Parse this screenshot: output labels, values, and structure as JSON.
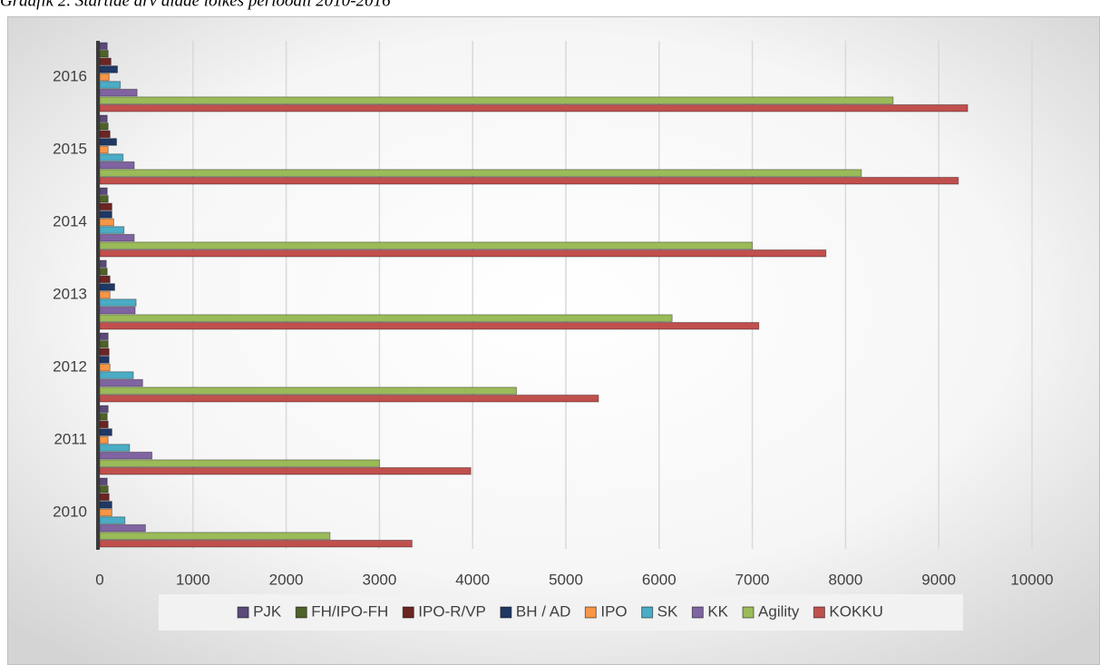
{
  "chart_data": {
    "type": "hbar",
    "title": "Graafik 2. Startide arv alade lõikes perioodil 2010-2016",
    "categories": [
      "2010",
      "2011",
      "2012",
      "2013",
      "2014",
      "2015",
      "2016"
    ],
    "series": [
      {
        "name": "PJK",
        "color": "#5b4a7a",
        "values": [
          80,
          90,
          90,
          70,
          80,
          80,
          80
        ]
      },
      {
        "name": "FH/IPO-FH",
        "color": "#4f6228",
        "values": [
          90,
          80,
          90,
          80,
          90,
          90,
          90
        ]
      },
      {
        "name": "IPO-R/VP",
        "color": "#6b2523",
        "values": [
          100,
          90,
          100,
          110,
          130,
          110,
          120
        ]
      },
      {
        "name": "BH / AD",
        "color": "#1f3864",
        "values": [
          130,
          130,
          100,
          160,
          130,
          180,
          190
        ]
      },
      {
        "name": "IPO",
        "color": "#f79646",
        "values": [
          130,
          90,
          110,
          110,
          150,
          90,
          100
        ]
      },
      {
        "name": "SK",
        "color": "#4bacc6",
        "values": [
          270,
          320,
          360,
          390,
          260,
          250,
          220
        ]
      },
      {
        "name": "KK",
        "color": "#8064a2",
        "values": [
          490,
          560,
          460,
          380,
          370,
          370,
          400
        ]
      },
      {
        "name": "Agility",
        "color": "#9bbb59",
        "values": [
          2470,
          3000,
          4470,
          6140,
          7000,
          8170,
          8510
        ]
      },
      {
        "name": "KOKKU",
        "color": "#c0504d",
        "values": [
          3350,
          3980,
          5350,
          7070,
          7790,
          9210,
          9310
        ]
      }
    ],
    "xlim": [
      0,
      10000
    ],
    "xticks": [
      0,
      1000,
      2000,
      3000,
      4000,
      5000,
      6000,
      7000,
      8000,
      9000,
      10000
    ],
    "grid": true,
    "legend": "bottom"
  }
}
